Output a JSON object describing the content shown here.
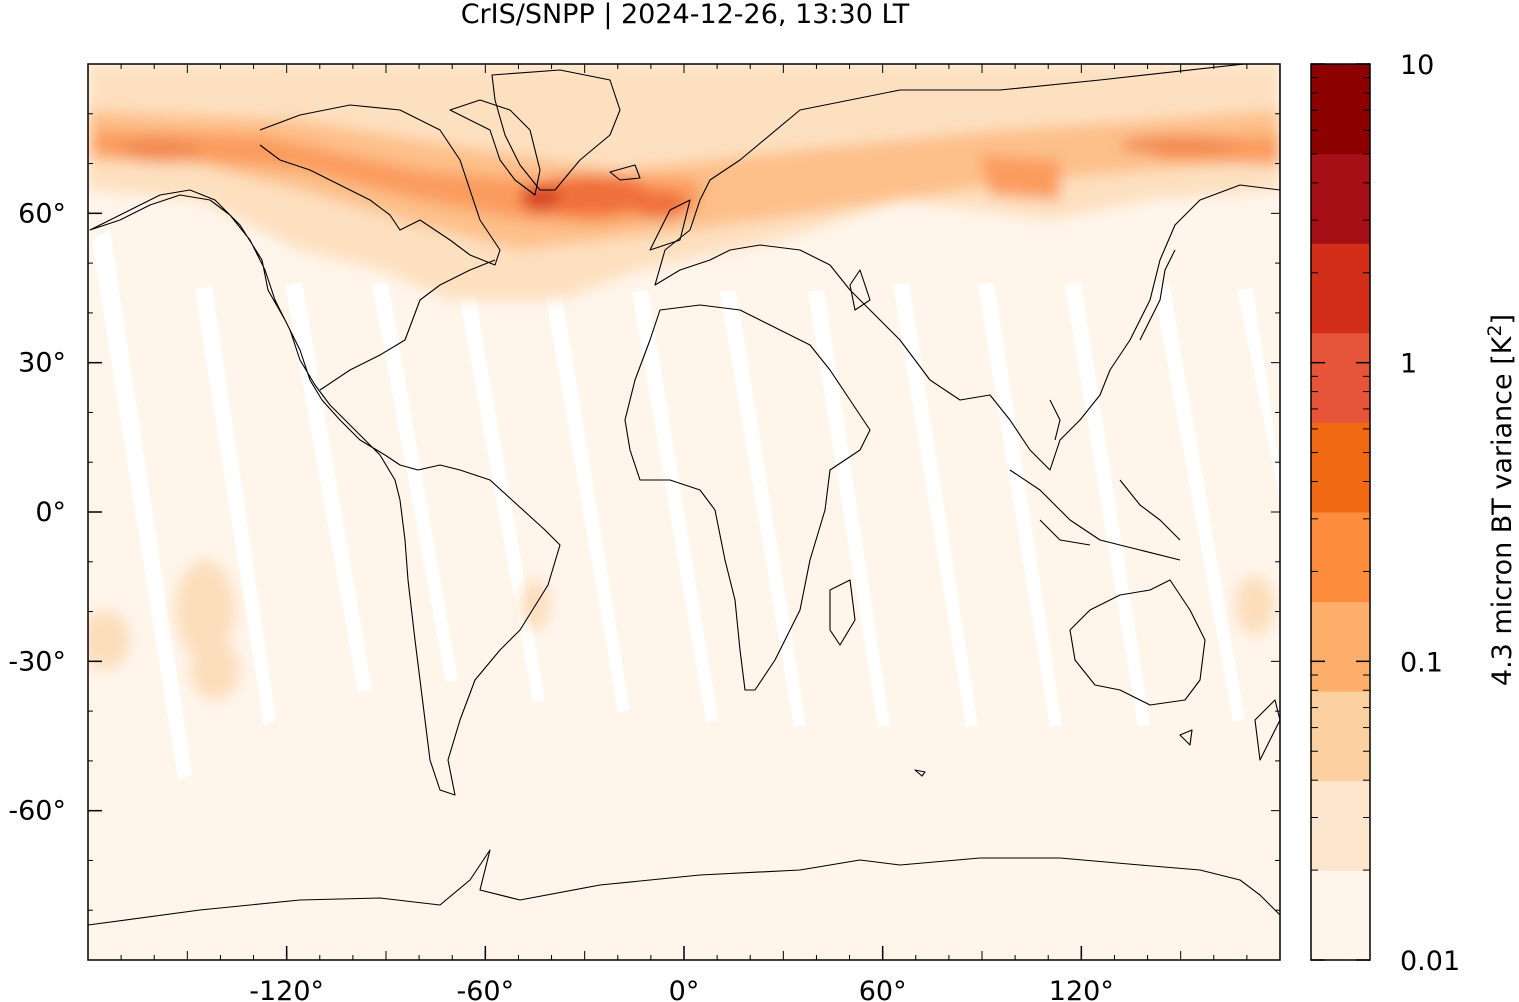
{
  "title": "CrIS/SNPP | 2024-12-26, 13:30 LT",
  "map": {
    "projection": "plate-carree",
    "lon_range": [
      -180,
      180
    ],
    "lat_range": [
      -90,
      90
    ],
    "x_ticks": [
      {
        "value": -120,
        "label": "-120°"
      },
      {
        "value": -60,
        "label": "-60°"
      },
      {
        "value": 0,
        "label": "0°"
      },
      {
        "value": 60,
        "label": "60°"
      },
      {
        "value": 120,
        "label": "120°"
      }
    ],
    "y_ticks": [
      {
        "value": 60,
        "label": "60°"
      },
      {
        "value": 30,
        "label": "30°"
      },
      {
        "value": 0,
        "label": "0°"
      },
      {
        "value": -30,
        "label": "-30°"
      },
      {
        "value": -60,
        "label": "-60°"
      }
    ],
    "background_color": "#fff5eb",
    "coastline_color": "#000000"
  },
  "colorbar": {
    "label_main": "4.3 micron BT variance [K",
    "label_sup": "2",
    "label_end": "]",
    "scale": "log",
    "range": [
      0.01,
      10
    ],
    "tick_labels": [
      {
        "value": 10,
        "label": "10"
      },
      {
        "value": 1,
        "label": "1"
      },
      {
        "value": 0.1,
        "label": "0.1"
      },
      {
        "value": 0.01,
        "label": "0.01"
      }
    ],
    "colors": [
      "#fff5eb",
      "#fee6ce",
      "#fdd0a2",
      "#fdae6b",
      "#fd8d3c",
      "#f16913",
      "#e6553a",
      "#d22e1a",
      "#a50f15",
      "#8c0000"
    ]
  }
}
